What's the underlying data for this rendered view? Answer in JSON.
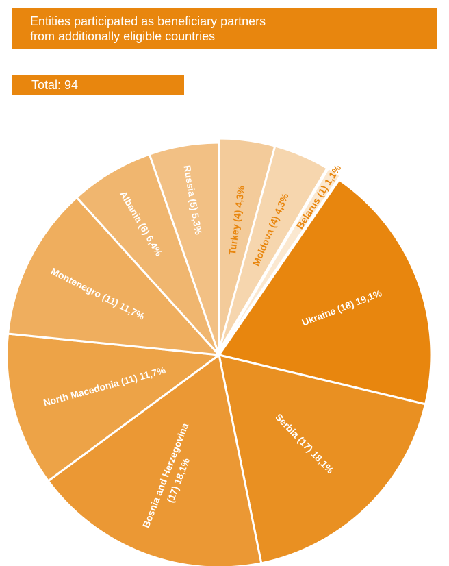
{
  "header": {
    "title_line1": "Entities participated as beneficiary partners",
    "title_line2": "from additionally eligible countries",
    "total_label": "Total: 94"
  },
  "colors": {
    "accent": "#E8860E",
    "divider": "#ffffff"
  },
  "chart_data": {
    "type": "pie",
    "total": 94,
    "start": "top, clockwise",
    "slices": [
      {
        "label": "Turkey  (4) 4,3%",
        "name": "Turkey",
        "count": 4,
        "percent": 4.3,
        "color": "#F3CB9A",
        "text_color": "#E8860E"
      },
      {
        "label": "Moldova  (4) 4,3%",
        "name": "Moldova",
        "count": 4,
        "percent": 4.3,
        "color": "#F6D6AE",
        "text_color": "#E8860E"
      },
      {
        "label": "Belarus  (1) 1,1%",
        "name": "Belarus",
        "count": 1,
        "percent": 1.1,
        "color": "#FBE8D0",
        "text_color": "#E8860E"
      },
      {
        "label": "Ukraine  (18) 19,1%",
        "name": "Ukraine",
        "count": 18,
        "percent": 19.1,
        "color": "#E8860E",
        "text_color": "#ffffff"
      },
      {
        "label": "Serbia  (17) 18,1%",
        "name": "Serbia",
        "count": 17,
        "percent": 18.1,
        "color": "#E99022",
        "text_color": "#ffffff"
      },
      {
        "label": "Bosnia and Herzegovina (17) 18,1%",
        "name": "Bosnia and Herzegovina",
        "count": 17,
        "percent": 18.1,
        "color": "#EB9834",
        "text_color": "#ffffff"
      },
      {
        "label": "North Macedonia  (11)  11,7%",
        "name": "North Macedonia",
        "count": 11,
        "percent": 11.7,
        "color": "#EDA347",
        "text_color": "#ffffff"
      },
      {
        "label": "Montenegro  (11)  11,7%",
        "name": "Montenegro",
        "count": 11,
        "percent": 11.7,
        "color": "#EFAE5E",
        "text_color": "#ffffff"
      },
      {
        "label": "Albania  (6) 6,4%",
        "name": "Albania",
        "count": 6,
        "percent": 6.4,
        "color": "#F0B66F",
        "text_color": "#ffffff"
      },
      {
        "label": "Russia  (5)  5,3%",
        "name": "Russia",
        "count": 5,
        "percent": 5.3,
        "color": "#F2C084",
        "text_color": "#ffffff"
      }
    ]
  }
}
